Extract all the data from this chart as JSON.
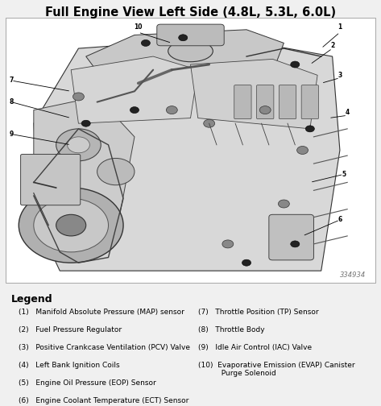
{
  "title": "Full Engine View Left Side (4.8L, 5.3L, 6.0L)",
  "title_fontsize": 10.5,
  "title_fontweight": "bold",
  "bg_color": "#f0f0f0",
  "diagram_bg": "#ffffff",
  "legend_title": "Legend",
  "legend_title_fontsize": 9,
  "legend_title_fontweight": "bold",
  "legend_items_left": [
    "(1)   Manifold Absolute Pressure (MAP) sensor",
    "(2)   Fuel Pressure Regulator",
    "(3)   Positive Crankcase Ventilation (PCV) Valve",
    "(4)   Left Bank Ignition Coils",
    "(5)   Engine Oil Pressure (EOP) Sensor",
    "(6)   Engine Coolant Temperature (ECT) Sensor"
  ],
  "legend_items_right": [
    "(7)   Throttle Position (TP) Sensor",
    "(8)   Throttle Body",
    "(9)   Idle Air Control (IAC) Valve",
    "(10)  Evaporative Emission (EVAP) Canister\n          Purge Solenoid"
  ],
  "legend_fontsize": 6.5,
  "watermark": "334934",
  "watermark_fontsize": 6,
  "figsize": [
    4.73,
    5.04
  ],
  "dpi": 100
}
